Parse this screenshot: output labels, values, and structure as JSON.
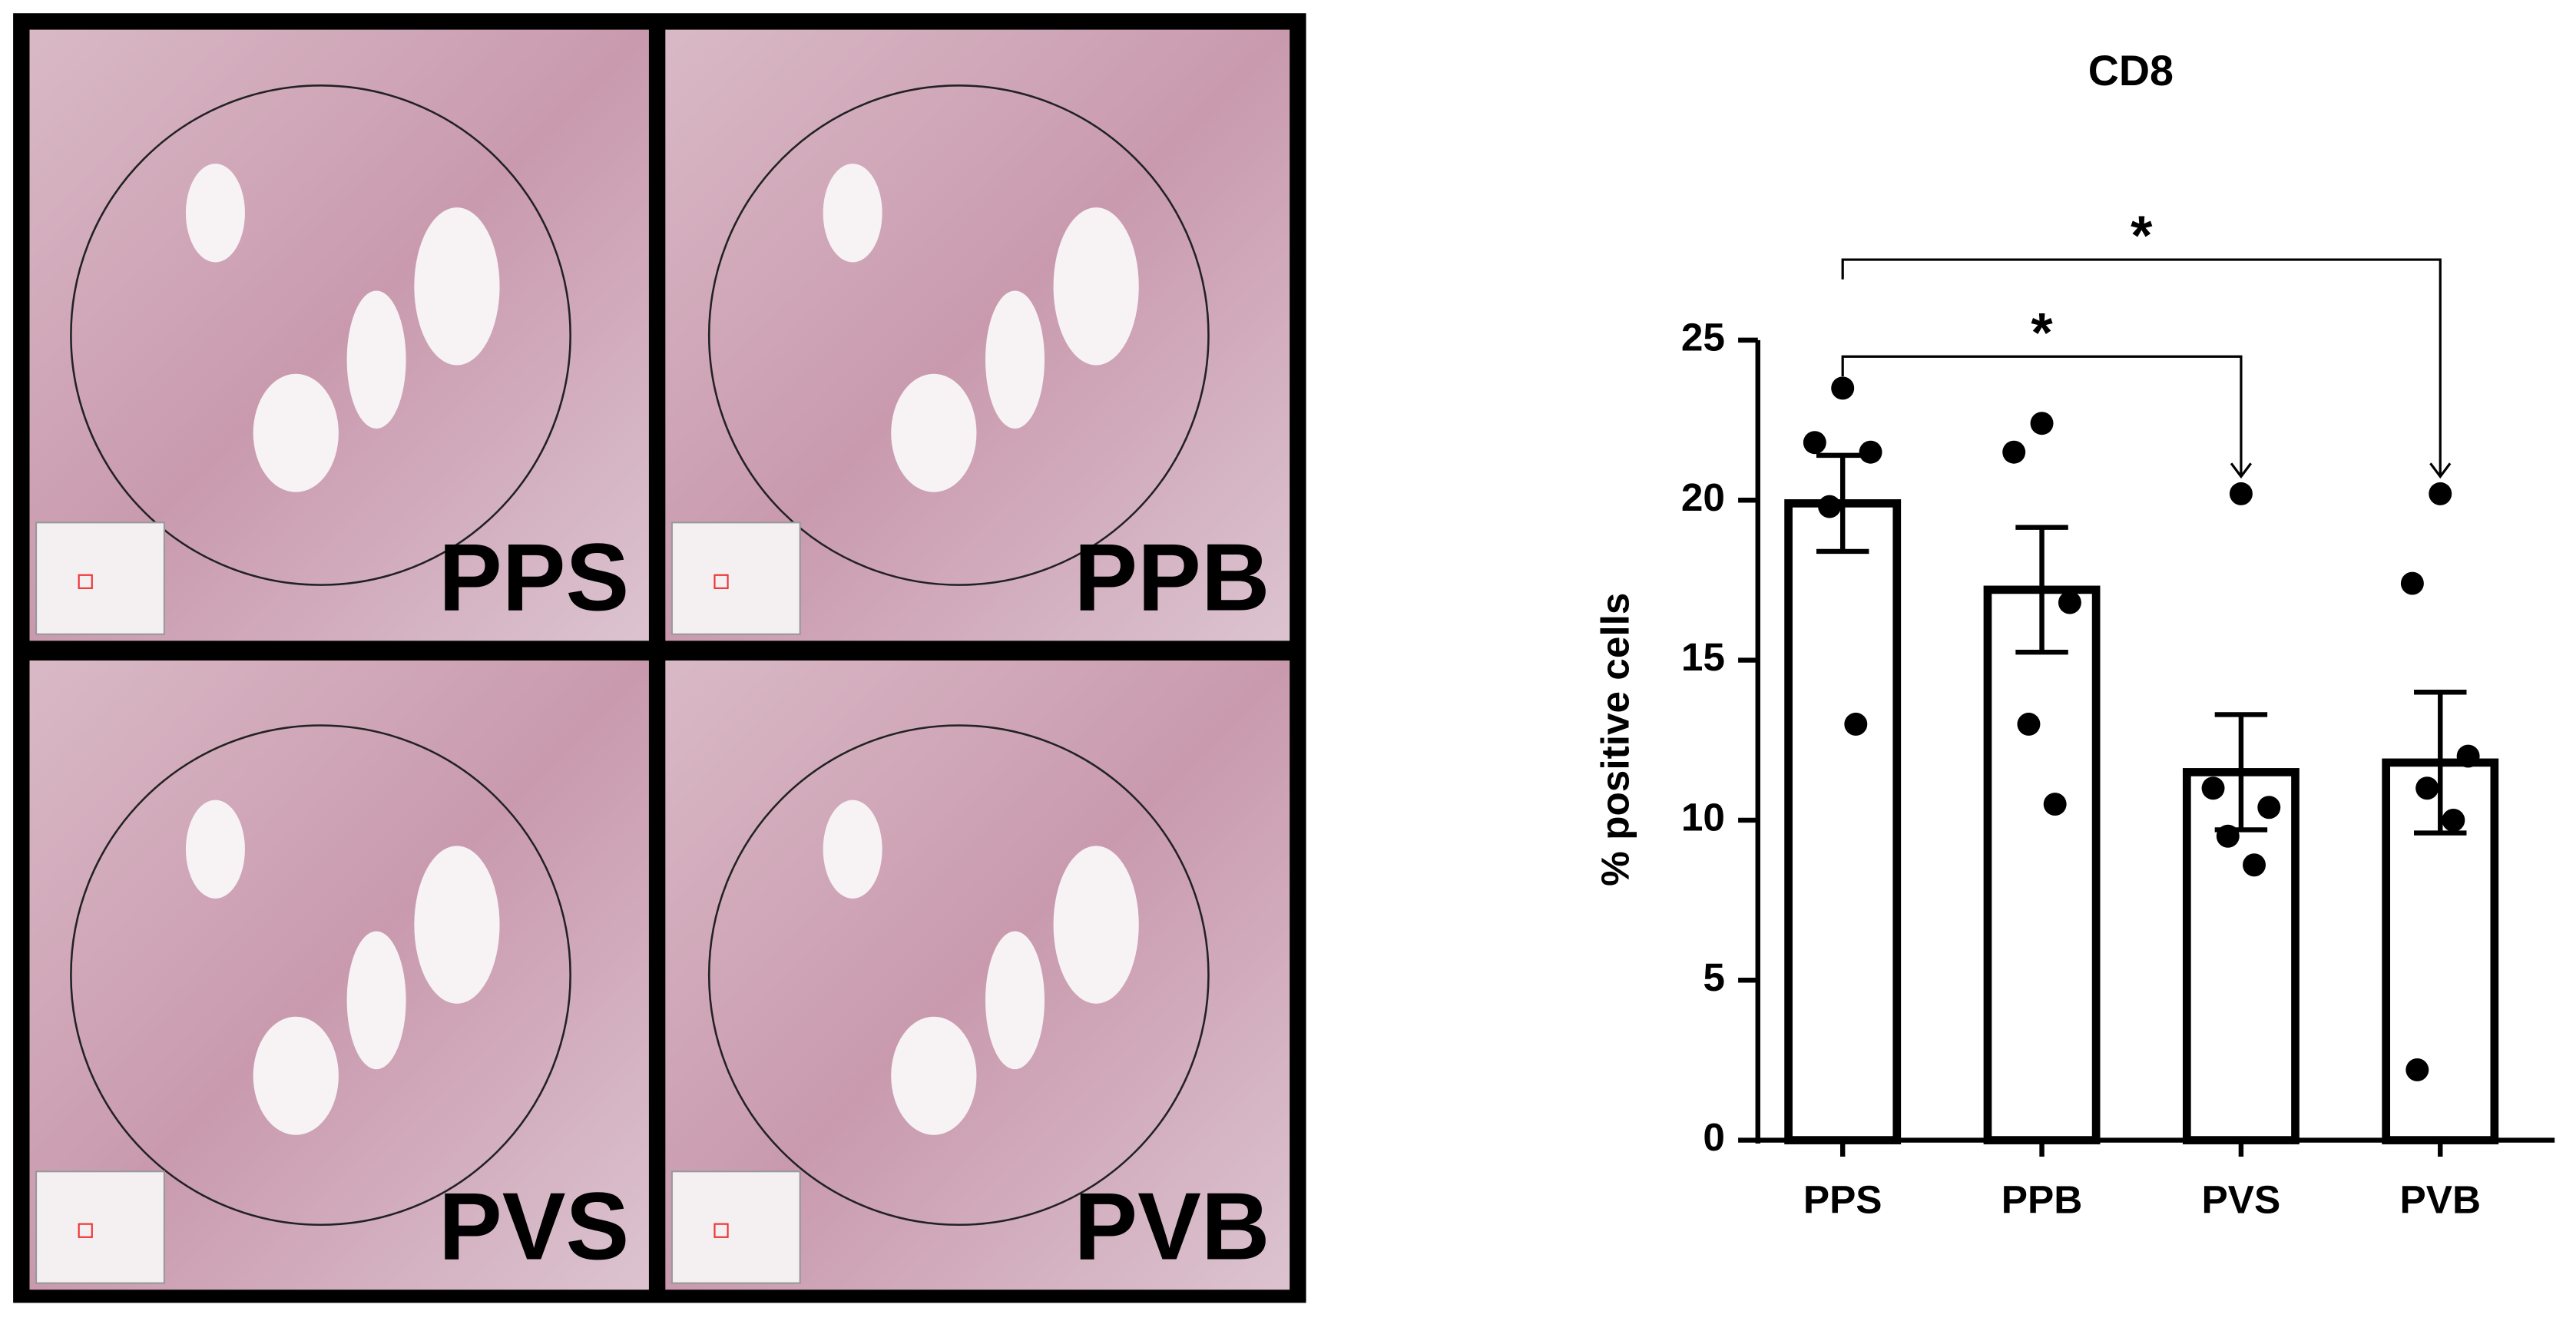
{
  "image_panels": [
    "PPS",
    "PPB",
    "PVS",
    "PVB"
  ],
  "chart_data": {
    "type": "bar",
    "title": "CD8",
    "y_label": "% positive cells",
    "categories": [
      "PPS",
      "PPB",
      "PVS",
      "PVB"
    ],
    "values": [
      19.9,
      17.2,
      11.5,
      11.8
    ],
    "errors": [
      1.5,
      1.95,
      1.8,
      2.2
    ],
    "points": [
      [
        23.5,
        21.8,
        21.5,
        19.8,
        13.0
      ],
      [
        22.4,
        21.5,
        16.8,
        13.0,
        10.5
      ],
      [
        20.2,
        11.0,
        10.4,
        9.5,
        8.6
      ],
      [
        20.2,
        17.4,
        12.0,
        11.0,
        10.0,
        2.2
      ]
    ],
    "color": "#ffffff",
    "ylim": [
      0,
      25
    ],
    "yticks": [
      0,
      5,
      10,
      15,
      20,
      25
    ],
    "annotations": [
      "*",
      "*"
    ]
  }
}
